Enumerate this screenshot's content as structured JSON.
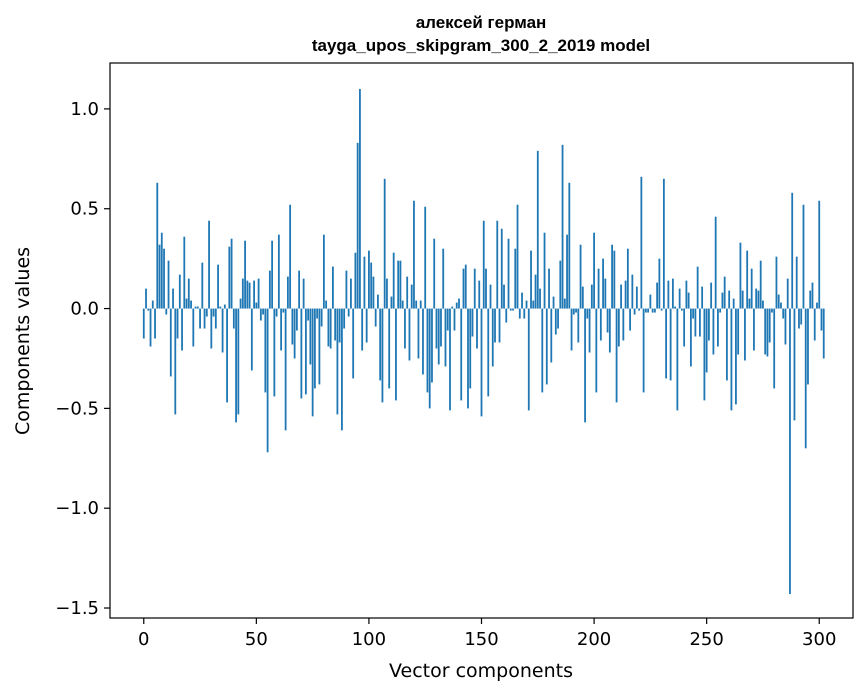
{
  "chart_data": {
    "type": "bar",
    "title": "алексей герман",
    "subtitle": "tayga_upos_skipgram_300_2_2019 model",
    "xlabel": "Vector components",
    "ylabel": "Components values",
    "xlim": [
      -15,
      315
    ],
    "ylim": [
      -1.55,
      1.23
    ],
    "xticks": [
      0,
      50,
      100,
      150,
      200,
      250,
      300
    ],
    "yticks": [
      1.0,
      0.5,
      0.0,
      -0.5,
      -1.0,
      -1.5
    ],
    "xtick_labels": [
      "0",
      "50",
      "100",
      "150",
      "200",
      "250",
      "300"
    ],
    "ytick_labels": [
      "1.0",
      "0.5",
      "0.0",
      "−0.5",
      "−1.0",
      "−1.5"
    ],
    "bar_color": "#1f77b4",
    "grid": false,
    "values": [
      -0.15,
      0.1,
      -0.01,
      -0.19,
      0.04,
      -0.15,
      0.63,
      0.32,
      0.38,
      0.3,
      -0.03,
      0.24,
      -0.34,
      0.1,
      -0.53,
      -0.15,
      0.17,
      -0.21,
      0.36,
      0.05,
      0.15,
      0.04,
      -0.19,
      0.01,
      0.01,
      -0.1,
      0.23,
      -0.1,
      -0.04,
      0.44,
      -0.2,
      -0.04,
      -0.1,
      0.22,
      0.01,
      -0.22,
      0.02,
      -0.47,
      0.31,
      0.35,
      -0.1,
      -0.57,
      -0.53,
      0.05,
      0.15,
      0.34,
      0.14,
      0.13,
      -0.31,
      0.14,
      0.03,
      0.15,
      -0.06,
      -0.03,
      -0.42,
      -0.72,
      0.19,
      0.34,
      -0.44,
      -0.04,
      0.37,
      -0.21,
      -0.02,
      -0.61,
      0.16,
      0.52,
      -0.18,
      -0.25,
      -0.11,
      0.19,
      -0.45,
      0.15,
      -0.43,
      -0.06,
      -0.28,
      -0.54,
      -0.4,
      -0.05,
      -0.38,
      -0.09,
      0.37,
      0.04,
      -0.19,
      -0.2,
      0.21,
      -0.16,
      -0.53,
      -0.17,
      -0.61,
      -0.1,
      0.19,
      -0.04,
      0.15,
      -0.35,
      0.28,
      0.83,
      1.1,
      -0.21,
      0.26,
      -0.17,
      0.29,
      0.23,
      0.16,
      -0.09,
      0.07,
      -0.36,
      -0.47,
      0.65,
      0.15,
      -0.4,
      0.06,
      0.28,
      -0.46,
      0.24,
      0.24,
      0.04,
      -0.2,
      0.16,
      -0.26,
      0.12,
      0.54,
      0.04,
      -0.25,
      0.04,
      -0.33,
      0.51,
      -0.42,
      -0.5,
      -0.37,
      0.35,
      -0.2,
      -0.28,
      -0.19,
      0.3,
      -0.29,
      -0.11,
      -0.51,
      0.01,
      -0.11,
      0.03,
      0.05,
      -0.46,
      0.2,
      0.22,
      -0.5,
      -0.4,
      -0.14,
      0.2,
      -0.2,
      0.14,
      -0.54,
      0.44,
      0.2,
      -0.44,
      0.12,
      -0.29,
      -0.17,
      0.44,
      -0.17,
      0.4,
      0.12,
      -0.07,
      0.35,
      -0.01,
      -0.01,
      0.3,
      0.52,
      -0.05,
      0.08,
      -0.05,
      0.04,
      -0.51,
      0.29,
      0.04,
      0.17,
      0.79,
      0.1,
      -0.42,
      0.38,
      -0.38,
      0.2,
      -0.27,
      0.06,
      -0.13,
      -0.1,
      0.24,
      0.82,
      0.05,
      0.37,
      0.63,
      -0.21,
      -0.03,
      -0.02,
      -0.17,
      0.32,
      0.11,
      -0.57,
      -0.05,
      -0.22,
      0.12,
      0.38,
      -0.42,
      0.2,
      -0.16,
      0.25,
      0.15,
      -0.12,
      -0.22,
      0.32,
      0.29,
      -0.47,
      -0.19,
      0.12,
      -0.16,
      0.14,
      0.3,
      -0.11,
      0.17,
      -0.03,
      0.11,
      -0.01,
      0.66,
      -0.42,
      -0.02,
      -0.02,
      0.07,
      -0.02,
      -0.02,
      0.13,
      0.25,
      -0.01,
      0.65,
      -0.35,
      0.14,
      -0.36,
      0.15,
      0.01,
      -0.51,
      0.1,
      -0.01,
      -0.19,
      0.14,
      0.08,
      -0.29,
      -0.05,
      -0.14,
      0.21,
      -0.14,
      0.11,
      -0.46,
      -0.32,
      -0.16,
      0.13,
      -0.23,
      0.46,
      -0.19,
      -0.02,
      0.08,
      0.16,
      -0.36,
      0.09,
      -0.51,
      0.05,
      -0.48,
      -0.23,
      0.33,
      0.09,
      -0.26,
      0.29,
      0.05,
      0.2,
      -0.21,
      0.1,
      0.09,
      0.24,
      0.04,
      -0.23,
      -0.24,
      -0.17,
      -0.02,
      -0.4,
      0.26,
      0.07,
      0.03,
      -0.05,
      -0.18,
      0.15,
      -1.43,
      0.58,
      -0.56,
      0.26,
      -0.1,
      -0.08,
      0.52,
      -0.7,
      -0.38,
      0.09,
      0.13,
      -0.16,
      0.03,
      0.54,
      -0.11,
      -0.25
    ]
  }
}
